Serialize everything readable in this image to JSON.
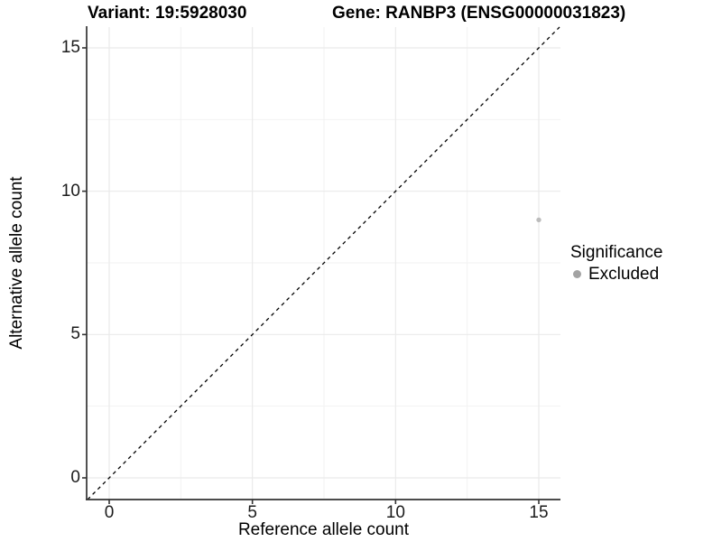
{
  "titles": {
    "variant": "Variant: 19:5928030",
    "gene": "Gene: RANBP3 (ENSG00000031823)"
  },
  "legend": {
    "title": "Significance",
    "items": [
      {
        "label": "Excluded",
        "key_color": "#a3a3a3"
      }
    ]
  },
  "chart_data": {
    "type": "scatter",
    "title_left": "Variant: 19:5928030",
    "title_right": "Gene: RANBP3 (ENSG00000031823)",
    "xlabel": "Reference allele count",
    "ylabel": "Alternative allele count",
    "x_ticks": [
      0,
      5,
      10,
      15
    ],
    "y_ticks": [
      0,
      5,
      10,
      15
    ],
    "xlim": [
      -0.79,
      15.76
    ],
    "ylim": [
      -0.76,
      15.73
    ],
    "grid": {
      "major": true,
      "minor": true
    },
    "legend_position": "right",
    "reference_line": {
      "type": "identity-diagonal",
      "equation": "y = x",
      "style": "dashed",
      "color": "#000000"
    },
    "series": [
      {
        "name": "Excluded",
        "color": "#bcbcbc",
        "points": [
          {
            "x": 15,
            "y": 9
          }
        ]
      }
    ]
  },
  "colors": {
    "background": "#ffffff",
    "grid_major": "#eaeaea",
    "grid_minor": "#f2f2f2",
    "axis_line": "#333333",
    "tick_mark": "#333333",
    "tick_label": "#1c1c1c",
    "title_text": "#000000"
  }
}
